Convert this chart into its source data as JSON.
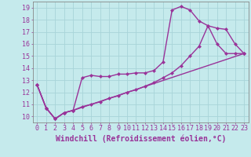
{
  "xlabel": "Windchill (Refroidissement éolien,°C)",
  "background_color": "#c5eaec",
  "grid_color": "#a8d4d8",
  "line_color": "#993399",
  "xlim": [
    -0.5,
    23.5
  ],
  "ylim": [
    9.5,
    19.5
  ],
  "xticks": [
    0,
    1,
    2,
    3,
    4,
    5,
    6,
    7,
    8,
    9,
    10,
    11,
    12,
    13,
    14,
    15,
    16,
    17,
    18,
    19,
    20,
    21,
    22,
    23
  ],
  "yticks": [
    10,
    11,
    12,
    13,
    14,
    15,
    16,
    17,
    18,
    19
  ],
  "line1_x": [
    0,
    1,
    2,
    3,
    4,
    5,
    6,
    7,
    8,
    9,
    10,
    11,
    12,
    13,
    14,
    15,
    16,
    17,
    18,
    19,
    20,
    21,
    22,
    23
  ],
  "line1_y": [
    12.6,
    10.7,
    9.8,
    10.3,
    10.5,
    13.2,
    13.4,
    13.3,
    13.3,
    13.5,
    13.5,
    13.6,
    13.6,
    13.8,
    14.5,
    18.8,
    19.1,
    18.8,
    17.9,
    17.5,
    16.0,
    15.2,
    15.2,
    15.2
  ],
  "line2_x": [
    0,
    1,
    2,
    3,
    4,
    23
  ],
  "line2_y": [
    12.6,
    10.7,
    9.8,
    10.3,
    10.5,
    15.2
  ],
  "line3_x": [
    0,
    1,
    2,
    3,
    4,
    5,
    6,
    7,
    8,
    9,
    10,
    11,
    12,
    13,
    14,
    15,
    16,
    17,
    18,
    19,
    20,
    21,
    22,
    23
  ],
  "line3_y": [
    12.6,
    10.7,
    9.8,
    10.3,
    10.5,
    10.8,
    11.0,
    11.2,
    11.5,
    11.7,
    12.0,
    12.2,
    12.5,
    12.8,
    13.2,
    13.6,
    14.2,
    15.0,
    15.8,
    17.5,
    17.3,
    17.2,
    16.0,
    15.2
  ],
  "marker": "D",
  "marker_size": 2.5,
  "line_width": 1.0,
  "tick_fontsize": 6,
  "label_fontsize": 7
}
